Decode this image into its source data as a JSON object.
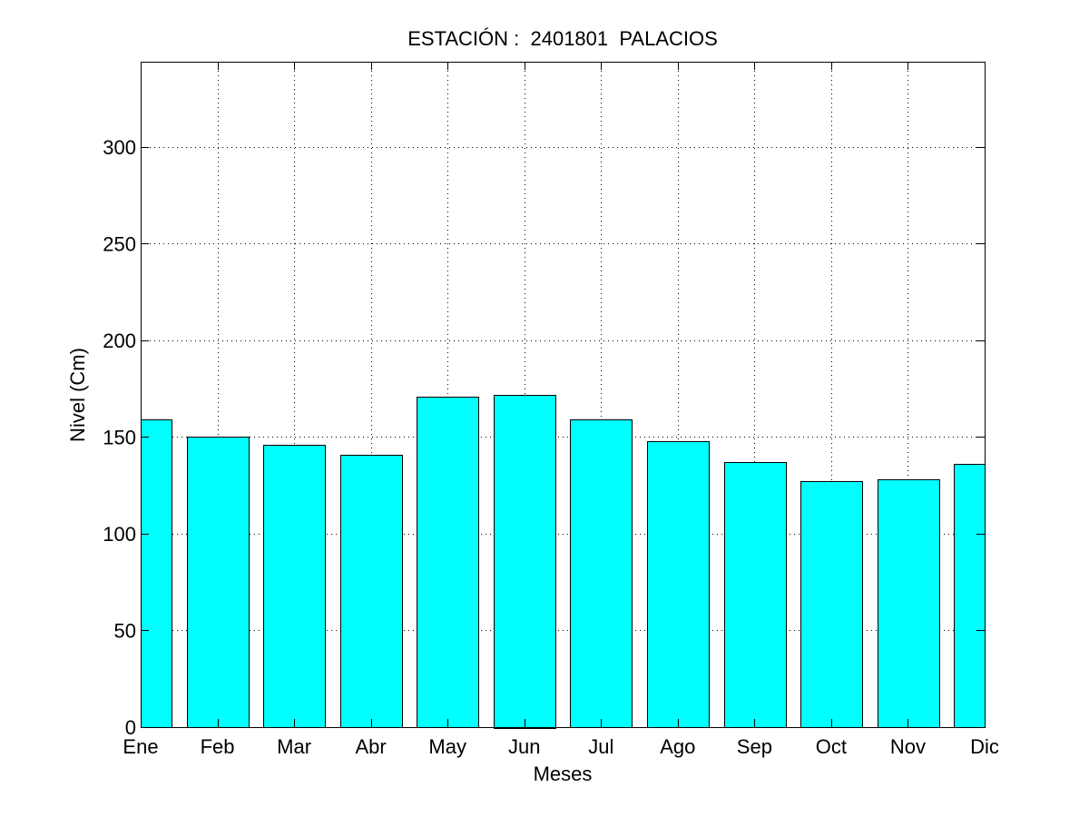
{
  "chart_data": {
    "type": "bar",
    "title": "ESTACIÓN :  2401801  PALACIOS",
    "xlabel": "Meses",
    "ylabel": "Nivel (Cm)",
    "categories": [
      "Ene",
      "Feb",
      "Mar",
      "Abr",
      "May",
      "Jun",
      "Jul",
      "Ago",
      "Sep",
      "Oct",
      "Nov",
      "Dic"
    ],
    "values": [
      159,
      150,
      146,
      141,
      171,
      172,
      159,
      148,
      137,
      127,
      128,
      136
    ],
    "ylim": [
      0,
      344
    ],
    "yticks": [
      0,
      50,
      100,
      150,
      200,
      250,
      300
    ],
    "grid": true,
    "bar_color": "#00ffff"
  }
}
